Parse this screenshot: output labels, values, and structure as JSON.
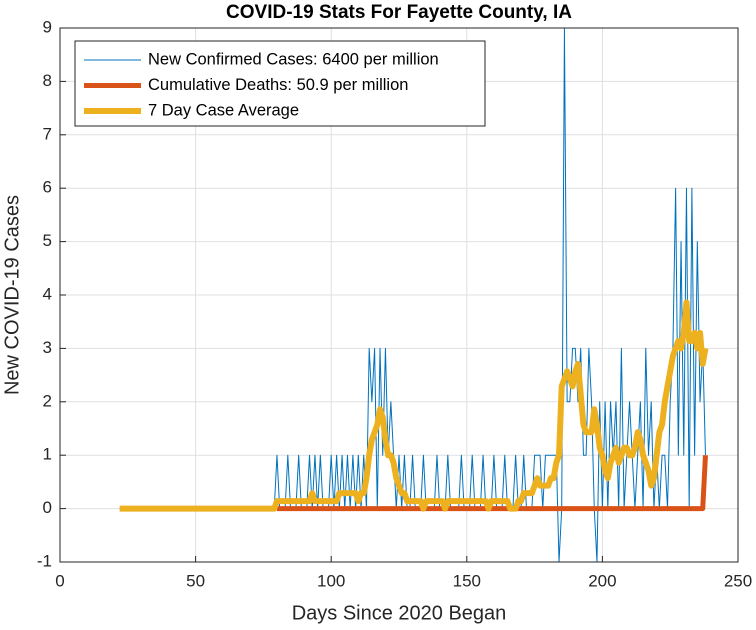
{
  "chart_data": {
    "type": "line",
    "title": "COVID-19 Stats For Fayette County, IA",
    "xlabel": "Days Since 2020 Began",
    "ylabel": "New COVID-19 Cases",
    "xlim": [
      0,
      250
    ],
    "xticks": [
      0,
      50,
      100,
      150,
      200,
      250
    ],
    "ylim": [
      -1,
      9
    ],
    "yticks": [
      -1,
      0,
      1,
      2,
      3,
      4,
      5,
      6,
      7,
      8,
      9
    ],
    "grid": true,
    "legend": "northwest",
    "x": [
      22,
      23,
      24,
      25,
      26,
      27,
      28,
      29,
      30,
      31,
      32,
      33,
      34,
      35,
      36,
      37,
      38,
      39,
      40,
      41,
      42,
      43,
      44,
      45,
      46,
      47,
      48,
      49,
      50,
      51,
      52,
      53,
      54,
      55,
      56,
      57,
      58,
      59,
      60,
      61,
      62,
      63,
      64,
      65,
      66,
      67,
      68,
      69,
      70,
      71,
      72,
      73,
      74,
      75,
      76,
      77,
      78,
      79,
      80,
      81,
      82,
      83,
      84,
      85,
      86,
      87,
      88,
      89,
      90,
      91,
      92,
      93,
      94,
      95,
      96,
      97,
      98,
      99,
      100,
      101,
      102,
      103,
      104,
      105,
      106,
      107,
      108,
      109,
      110,
      111,
      112,
      113,
      114,
      115,
      116,
      117,
      118,
      119,
      120,
      121,
      122,
      123,
      124,
      125,
      126,
      127,
      128,
      129,
      130,
      131,
      132,
      133,
      134,
      135,
      136,
      137,
      138,
      139,
      140,
      141,
      142,
      143,
      144,
      145,
      146,
      147,
      148,
      149,
      150,
      151,
      152,
      153,
      154,
      155,
      156,
      157,
      158,
      159,
      160,
      161,
      162,
      163,
      164,
      165,
      166,
      167,
      168,
      169,
      170,
      171,
      172,
      173,
      174,
      175,
      176,
      177,
      178,
      179,
      180,
      181,
      182,
      183,
      184,
      185,
      186,
      187,
      188,
      189,
      190,
      191,
      192,
      193,
      194,
      195,
      196,
      197,
      198,
      199,
      200,
      201,
      202,
      203,
      204,
      205,
      206,
      207,
      208,
      209,
      210,
      211,
      212,
      213,
      214,
      215,
      216,
      217,
      218,
      219,
      220,
      221,
      222,
      223,
      224,
      225,
      226,
      227,
      228,
      229,
      230,
      231,
      232,
      233,
      234,
      235,
      236,
      237,
      238
    ],
    "series": [
      {
        "name": "New Confirmed Cases: 6400 per million",
        "color": "#0072bd",
        "values": [
          0,
          0,
          0,
          0,
          0,
          0,
          0,
          0,
          0,
          0,
          0,
          0,
          0,
          0,
          0,
          0,
          0,
          0,
          0,
          0,
          0,
          0,
          0,
          0,
          0,
          0,
          0,
          0,
          0,
          0,
          0,
          0,
          0,
          0,
          0,
          0,
          0,
          0,
          0,
          0,
          0,
          0,
          0,
          0,
          0,
          0,
          0,
          0,
          0,
          0,
          0,
          0,
          0,
          0,
          0,
          0,
          0,
          0,
          1,
          0,
          0,
          0,
          1,
          0,
          0,
          0,
          1,
          0,
          0,
          0,
          1,
          0,
          1,
          0,
          1,
          0,
          0,
          0,
          1,
          0,
          1,
          0,
          1,
          0,
          1,
          0,
          1,
          0,
          1,
          0,
          1,
          0,
          3,
          2,
          3,
          0,
          3,
          1,
          3,
          1,
          2,
          1,
          0,
          1,
          0,
          1,
          0,
          0,
          1,
          0,
          0,
          0,
          1,
          0,
          0,
          0,
          0,
          1,
          0,
          0,
          0,
          1,
          0,
          0,
          0,
          0,
          1,
          0,
          0,
          0,
          1,
          0,
          0,
          0,
          1,
          0,
          0,
          0,
          1,
          0,
          0,
          0,
          1,
          0,
          0,
          0,
          1,
          0,
          0,
          1,
          0,
          0,
          0,
          1,
          1,
          1,
          0,
          1,
          1,
          1,
          1,
          1,
          -1,
          0,
          9,
          2,
          2,
          3,
          3,
          2,
          3,
          1,
          1,
          3,
          2,
          0,
          -1,
          2,
          0,
          2,
          0,
          2,
          1,
          2,
          0,
          3,
          0,
          1,
          2,
          1,
          0,
          1,
          2,
          0,
          3,
          1,
          2,
          0,
          1,
          0,
          1,
          1,
          0,
          2,
          3,
          6,
          1,
          5,
          1,
          6,
          0,
          6,
          1,
          5,
          2,
          3,
          1
        ]
      },
      {
        "name": "Cumulative Deaths: 50.9 per million",
        "color": "#d95319",
        "values": [
          null,
          null,
          null,
          null,
          null,
          null,
          null,
          null,
          null,
          null,
          null,
          null,
          null,
          null,
          null,
          null,
          null,
          null,
          null,
          null,
          null,
          null,
          null,
          null,
          null,
          null,
          null,
          null,
          null,
          null,
          null,
          null,
          null,
          null,
          null,
          null,
          null,
          null,
          null,
          null,
          null,
          null,
          null,
          null,
          null,
          null,
          null,
          null,
          null,
          null,
          null,
          null,
          null,
          null,
          null,
          null,
          null,
          null,
          0,
          0,
          0,
          0,
          0,
          0,
          0,
          0,
          0,
          0,
          0,
          0,
          0,
          0,
          0,
          0,
          0,
          0,
          0,
          0,
          0,
          0,
          0,
          0,
          0,
          0,
          0,
          0,
          0,
          0,
          0,
          0,
          0,
          0,
          0,
          0,
          0,
          0,
          0,
          0,
          0,
          0,
          0,
          0,
          0,
          0,
          0,
          0,
          0,
          0,
          0,
          0,
          0,
          0,
          0,
          0,
          0,
          0,
          0,
          0,
          0,
          0,
          0,
          0,
          0,
          0,
          0,
          0,
          0,
          0,
          0,
          0,
          0,
          0,
          0,
          0,
          0,
          0,
          0,
          0,
          0,
          0,
          0,
          0,
          0,
          0,
          0,
          0,
          0,
          0,
          0,
          0,
          0,
          0,
          0,
          0,
          0,
          0,
          0,
          0,
          0,
          0,
          0,
          0,
          0,
          0,
          0,
          0,
          0,
          0,
          0,
          0,
          0,
          0,
          0,
          0,
          0,
          0,
          0,
          0,
          0,
          0,
          0,
          0,
          0,
          0,
          0,
          0,
          0,
          0,
          0,
          0,
          0,
          0,
          0,
          0,
          0,
          0,
          0,
          0,
          0,
          0,
          0,
          0,
          0,
          0,
          0,
          0,
          0,
          0,
          0,
          0,
          0,
          0,
          0,
          0,
          0,
          0,
          1
        ]
      },
      {
        "name": "7 Day Case Average",
        "color": "#edb120",
        "values": [
          0,
          0,
          0,
          0,
          0,
          0,
          0,
          0,
          0,
          0,
          0,
          0,
          0,
          0,
          0,
          0,
          0,
          0,
          0,
          0,
          0,
          0,
          0,
          0,
          0,
          0,
          0,
          0,
          0,
          0,
          0,
          0,
          0,
          0,
          0,
          0,
          0,
          0,
          0,
          0,
          0,
          0,
          0,
          0,
          0,
          0,
          0,
          0,
          0,
          0,
          0,
          0,
          0,
          0,
          0,
          0,
          0,
          0,
          0.14,
          0.14,
          0.14,
          0.14,
          0.14,
          0.14,
          0.14,
          0.14,
          0.14,
          0.14,
          0.14,
          0.14,
          0.14,
          0.29,
          0.14,
          0.14,
          0.14,
          0.14,
          0.14,
          0.14,
          0.14,
          0.14,
          0.14,
          0.29,
          0.29,
          0.29,
          0.29,
          0.29,
          0.29,
          0.29,
          0.14,
          0.29,
          0.29,
          0.57,
          1.0,
          1.29,
          1.43,
          1.57,
          1.86,
          1.71,
          1.29,
          1.0,
          1.0,
          0.86,
          0.57,
          0.43,
          0.29,
          0.29,
          0.14,
          0.14,
          0.14,
          0.14,
          0.14,
          0.14,
          0,
          0.14,
          0.14,
          0.14,
          0.14,
          0.14,
          0.14,
          0.14,
          0,
          0.14,
          0.14,
          0.14,
          0.14,
          0.14,
          0.14,
          0.14,
          0.14,
          0.14,
          0.14,
          0.14,
          0.14,
          0.14,
          0.14,
          0.14,
          0,
          0.14,
          0.14,
          0.14,
          0.14,
          0.14,
          0.14,
          0.14,
          0,
          0,
          0,
          0.14,
          0.14,
          0.29,
          0.29,
          0.29,
          0.29,
          0.43,
          0.57,
          0.43,
          0.43,
          0.43,
          0.43,
          0.57,
          0.57,
          0.86,
          1.0,
          2.29,
          2.43,
          2.57,
          2.43,
          2.29,
          2.57,
          2.71,
          2.14,
          1.57,
          1.43,
          1.43,
          1.43,
          1.86,
          1.57,
          1.14,
          1.0,
          0.71,
          0.57,
          0.86,
          1.0,
          1.14,
          0.86,
          1.0,
          1.14,
          1.14,
          1.0,
          1.0,
          1.14,
          1.43,
          1.29,
          1.0,
          0.86,
          0.71,
          0.43,
          0.57,
          1.0,
          1.43,
          1.57,
          2.0,
          2.29,
          2.57,
          2.86,
          3.0,
          3.14,
          3.0,
          3.29,
          3.86,
          3.14,
          3.14,
          3.29,
          3.0,
          3.29,
          2.71,
          3.0
        ]
      }
    ]
  }
}
